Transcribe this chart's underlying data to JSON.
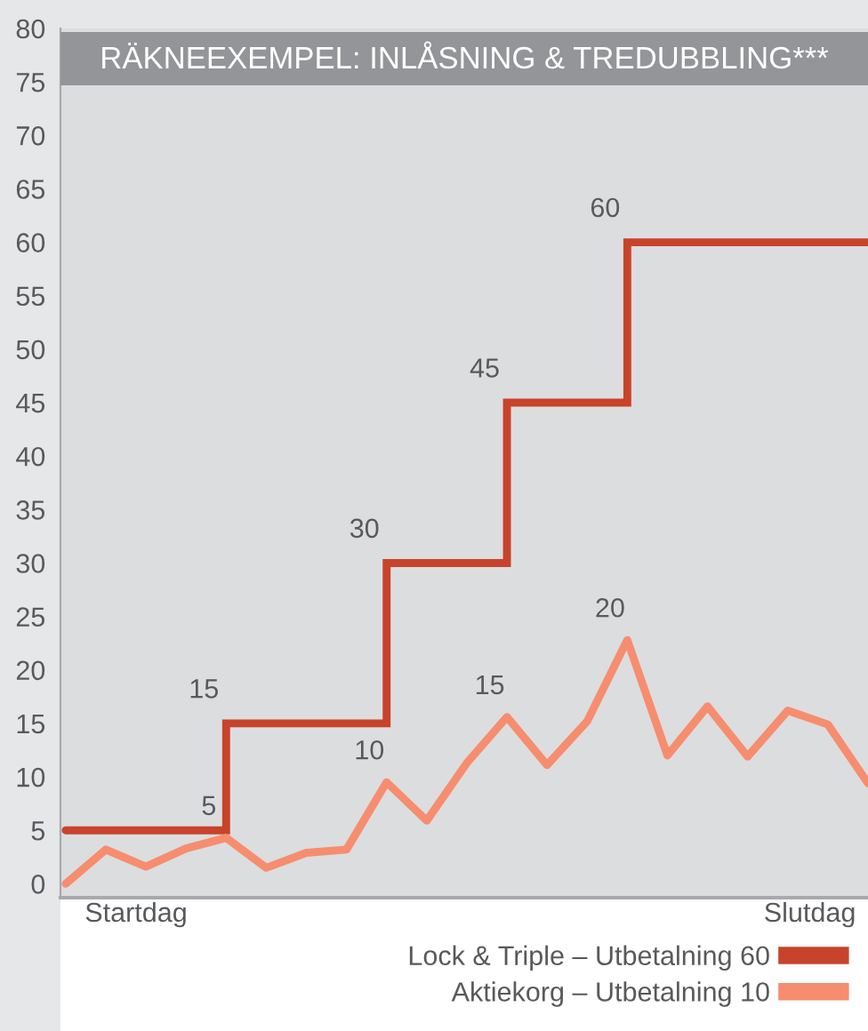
{
  "chart_data": {
    "type": "line",
    "title": "RÄKNEEXEMPEL: INLÅSNING & TREDUBBLING***",
    "categories": [
      null,
      null,
      null,
      null,
      null,
      null,
      null,
      null,
      null,
      null,
      null,
      null,
      null,
      null,
      null,
      null,
      null,
      null,
      null,
      null,
      null
    ],
    "ylim": [
      -1.3,
      80
    ],
    "yticks": [
      0,
      5,
      10,
      15,
      20,
      25,
      30,
      35,
      40,
      45,
      50,
      55,
      60,
      65,
      70,
      75,
      80
    ],
    "series": [
      {
        "name": "Lock & Triple – Utbetalning 60",
        "type": "step",
        "color": "#c8432b",
        "values": [
          5,
          5,
          5,
          5,
          15,
          15,
          15,
          15,
          30,
          30,
          30,
          45,
          45,
          45,
          60,
          60,
          60,
          60,
          60,
          60,
          60
        ],
        "value_labels": [
          null,
          null,
          null,
          null,
          "15",
          null,
          null,
          null,
          "30",
          null,
          null,
          "45",
          null,
          null,
          "60",
          null,
          null,
          null,
          null,
          null,
          null
        ]
      },
      {
        "name": "Aktiekorg – Utbetalning 10",
        "color": "#f68d6f",
        "values": [
          0,
          3.2,
          1.6,
          3.3,
          4.3,
          1.5,
          2.9,
          3.2,
          9.5,
          5.9,
          11.3,
          15.6,
          11.1,
          15.2,
          22.8,
          12.0,
          16.6,
          11.9,
          16.2,
          14.9,
          9.4
        ]
      }
    ],
    "annotations": [
      "Startdag",
      "Slutdag",
      "5",
      "10",
      "15",
      "20"
    ],
    "tick_labels": "y",
    "legend": "bottom right",
    "marker": "none",
    "line_style": "solid"
  }
}
